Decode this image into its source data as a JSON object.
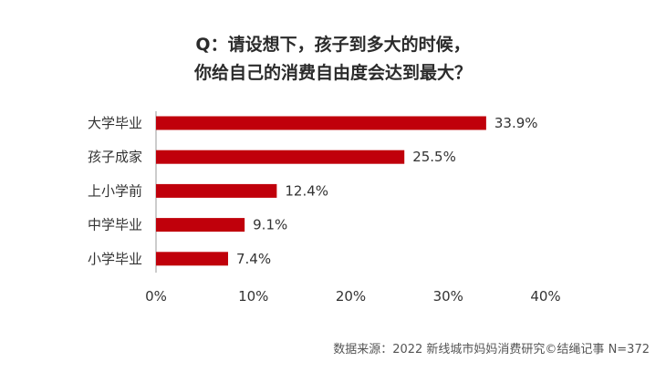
{
  "title": {
    "line1": "Q：请设想下，孩子到多大的时候，",
    "line2": "你给自己的消费自由度会达到最大？"
  },
  "source": "数据来源：2022 新线城市妈妈消费研究©结绳记事 N=372",
  "colors": {
    "bar": "#c0000b",
    "text": "#333333",
    "axis": "#9a9a9a"
  },
  "chart_data": {
    "type": "bar",
    "orientation": "horizontal",
    "categories": [
      "大学毕业",
      "孩子成家",
      "上小学前",
      "中学毕业",
      "小学毕业"
    ],
    "values": [
      33.9,
      25.5,
      12.4,
      9.1,
      7.4
    ],
    "value_labels": [
      "33.9%",
      "25.5%",
      "12.4%",
      "9.1%",
      "7.4%"
    ],
    "xlim": [
      0,
      40
    ],
    "xticks": [
      0,
      10,
      20,
      30,
      40
    ],
    "xtick_labels": [
      "0%",
      "10%",
      "20%",
      "30%",
      "40%"
    ],
    "grid": false,
    "legend": "none"
  }
}
